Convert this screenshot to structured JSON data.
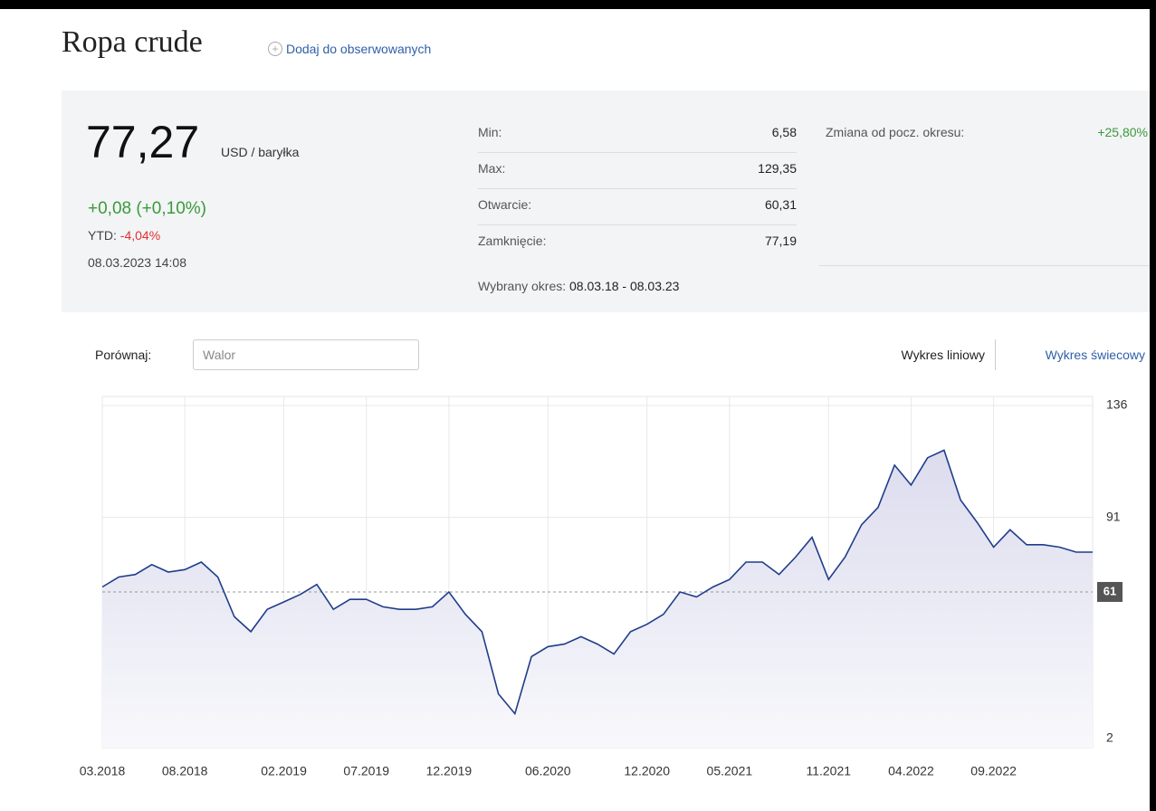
{
  "header": {
    "title": "Ropa crude",
    "watch": "Dodaj do obserwowanych"
  },
  "quote": {
    "price": "77,27",
    "unit": "USD / baryłka",
    "change": "+0,08 (+0,10%)",
    "ytd_label": "YTD:",
    "ytd": "-4,04%",
    "timestamp": "08.03.2023 14:08"
  },
  "stats": {
    "rows": [
      [
        "Min:",
        "6,58"
      ],
      [
        "Max:",
        "129,35"
      ],
      [
        "Otwarcie:",
        "60,31"
      ],
      [
        "Zamknięcie:",
        "77,19"
      ]
    ],
    "change_label": "Zmiana od pocz. okresu:",
    "change": "+25,80%",
    "period_label": "Wybrany okres:",
    "period": "08.03.18 - 08.03.23"
  },
  "controls": {
    "compare_label": "Porównaj:",
    "compare_placeholder": "Walor",
    "line_chart": "Wykres liniowy",
    "candle_chart": "Wykres świecowy"
  },
  "chart_data": {
    "type": "line",
    "color": "#1f3d8a",
    "x": [
      "03.2018",
      "04.2018",
      "05.2018",
      "06.2018",
      "07.2018",
      "08.2018",
      "09.2018",
      "10.2018",
      "11.2018",
      "12.2018",
      "01.2019",
      "02.2019",
      "03.2019",
      "04.2019",
      "05.2019",
      "06.2019",
      "07.2019",
      "08.2019",
      "09.2019",
      "10.2019",
      "11.2019",
      "12.2019",
      "01.2020",
      "02.2020",
      "03.2020",
      "04.2020",
      "05.2020",
      "06.2020",
      "07.2020",
      "08.2020",
      "09.2020",
      "10.2020",
      "11.2020",
      "12.2020",
      "01.2021",
      "02.2021",
      "03.2021",
      "04.2021",
      "05.2021",
      "06.2021",
      "07.2021",
      "08.2021",
      "09.2021",
      "10.2021",
      "11.2021",
      "12.2021",
      "01.2022",
      "02.2022",
      "03.2022",
      "04.2022",
      "05.2022",
      "06.2022",
      "07.2022",
      "08.2022",
      "09.2022",
      "10.2022",
      "11.2022",
      "12.2022",
      "01.2023",
      "02.2023",
      "03.2023"
    ],
    "values": [
      63,
      67,
      68,
      72,
      69,
      70,
      73,
      67,
      51,
      45,
      54,
      57,
      60,
      64,
      54,
      58,
      58,
      55,
      54,
      54,
      55,
      61,
      52,
      45,
      20,
      12,
      35,
      39,
      40,
      43,
      40,
      36,
      45,
      48,
      52,
      61,
      59,
      63,
      66,
      73,
      73,
      68,
      75,
      83,
      66,
      75,
      88,
      95,
      112,
      104,
      115,
      118,
      98,
      89,
      79,
      86,
      80,
      80,
      79,
      77,
      77
    ],
    "xticks": [
      "03.2018",
      "08.2018",
      "02.2019",
      "07.2019",
      "12.2019",
      "06.2020",
      "12.2020",
      "05.2021",
      "11.2021",
      "04.2022",
      "09.2022"
    ],
    "ylim": [
      2,
      136
    ],
    "yticks": [
      2,
      91,
      136
    ],
    "reference_line": 61,
    "grid": true
  }
}
